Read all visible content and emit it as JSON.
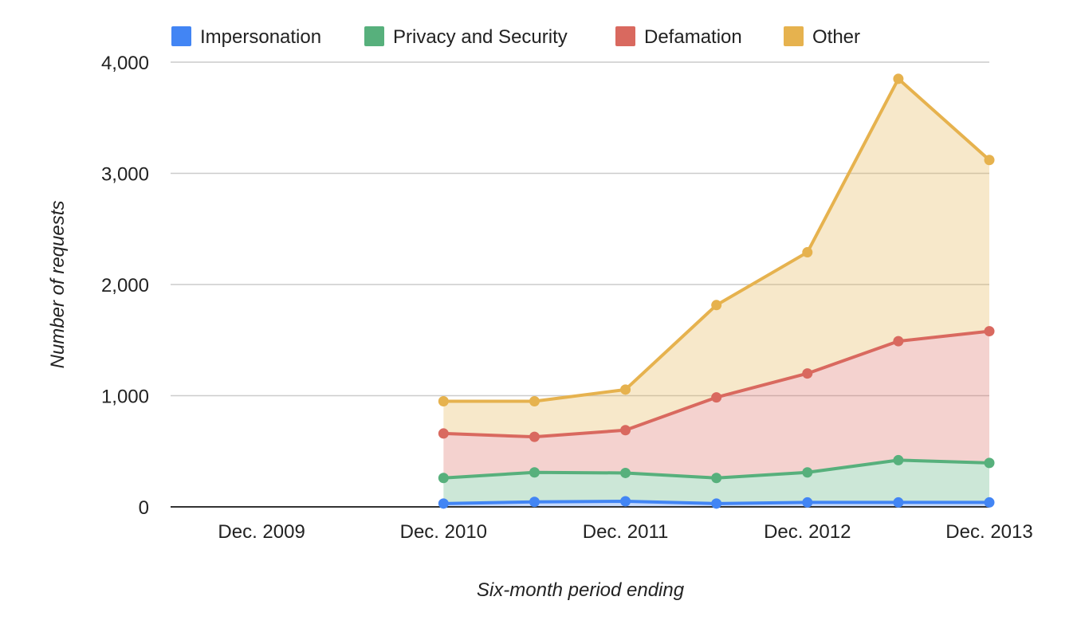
{
  "chart_data": {
    "type": "area",
    "stacked": true,
    "title": "",
    "xlabel": "Six-month period ending",
    "ylabel": "Number of requests",
    "ylim": [
      0,
      4000
    ],
    "y_ticks": [
      0,
      1000,
      2000,
      3000,
      4000
    ],
    "y_tick_labels": [
      "0",
      "1,000",
      "2,000",
      "3,000",
      "4,000"
    ],
    "x_ticks": [
      "Dec. 2009",
      "Dec. 2010",
      "Dec. 2011",
      "Dec. 2012",
      "Dec. 2013"
    ],
    "x": [
      "Jun. 2009",
      "Dec. 2009",
      "Jun. 2010",
      "Dec. 2010",
      "Jun. 2011",
      "Dec. 2011",
      "Jun. 2012",
      "Dec. 2012",
      "Jun. 2013",
      "Dec. 2013"
    ],
    "grid": true,
    "legend_position": "top",
    "series": [
      {
        "name": "Impersonation",
        "color": "#4285F4",
        "values": [
          null,
          null,
          null,
          30,
          45,
          50,
          30,
          40,
          40,
          40
        ]
      },
      {
        "name": "Privacy and Security",
        "color": "#57B07C",
        "values": [
          null,
          null,
          null,
          230,
          265,
          255,
          230,
          270,
          380,
          355
        ]
      },
      {
        "name": "Defamation",
        "color": "#D9695F",
        "values": [
          null,
          null,
          null,
          400,
          320,
          385,
          725,
          890,
          1070,
          1185
        ]
      },
      {
        "name": "Other",
        "color": "#E6B24E",
        "values": [
          null,
          null,
          null,
          290,
          320,
          365,
          830,
          1090,
          2360,
          1540
        ]
      }
    ]
  }
}
